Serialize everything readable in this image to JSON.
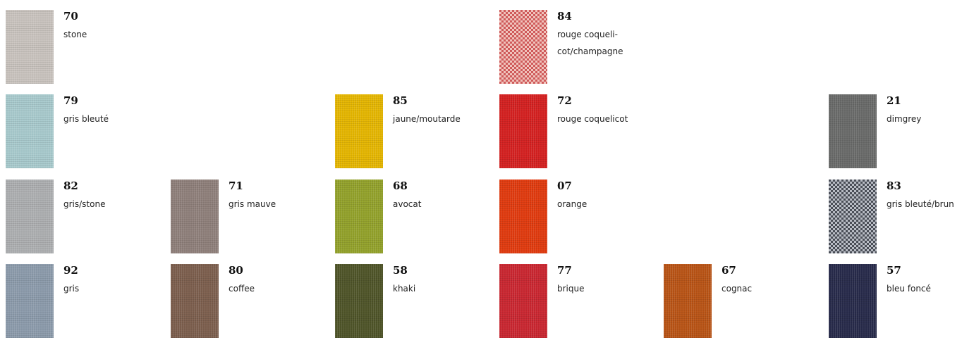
{
  "swatches": [
    {
      "code": "70",
      "name": "stone",
      "color": "#c8c2bd",
      "pattern": "weave"
    },
    {
      "code": "84",
      "name": "rouge coqueli-\ncot/champagne",
      "color": "#cf5a5a",
      "pattern": "check",
      "accent": "#f0c3bc"
    },
    {
      "code": "79",
      "name": "gris bleuté",
      "color": "#a7c9cc",
      "pattern": "weave"
    },
    {
      "code": "85",
      "name": "jaune/moutarde",
      "color": "#e4b500",
      "pattern": "weave"
    },
    {
      "code": "72",
      "name": "rouge coquelicot",
      "color": "#d42020",
      "pattern": "weave"
    },
    {
      "code": "21",
      "name": "dimgrey",
      "color": "#696a69",
      "pattern": "weave"
    },
    {
      "code": "82",
      "name": "gris/stone",
      "color": "#acaeb0",
      "pattern": "weave"
    },
    {
      "code": "71",
      "name": "gris mauve",
      "color": "#8e7f7a",
      "pattern": "weave"
    },
    {
      "code": "68",
      "name": "avocat",
      "color": "#92a12a",
      "pattern": "weave"
    },
    {
      "code": "07",
      "name": "orange",
      "color": "#e03a0e",
      "pattern": "weave"
    },
    {
      "code": "83",
      "name": "gris bleuté/brun",
      "color": "#4a4e57",
      "pattern": "check",
      "accent": "#b8bcc4"
    },
    {
      "code": "92",
      "name": "gris",
      "color": "#8b9aaa",
      "pattern": "weave"
    },
    {
      "code": "80",
      "name": "coffee",
      "color": "#7c5e4d",
      "pattern": "weave"
    },
    {
      "code": "58",
      "name": "khaki",
      "color": "#4e5428",
      "pattern": "weave"
    },
    {
      "code": "77",
      "name": "brique",
      "color": "#c92630",
      "pattern": "weave"
    },
    {
      "code": "67",
      "name": "cognac",
      "color": "#b85315",
      "pattern": "weave"
    },
    {
      "code": "57",
      "name": "bleu foncé",
      "color": "#272a4a",
      "pattern": "weave"
    }
  ]
}
